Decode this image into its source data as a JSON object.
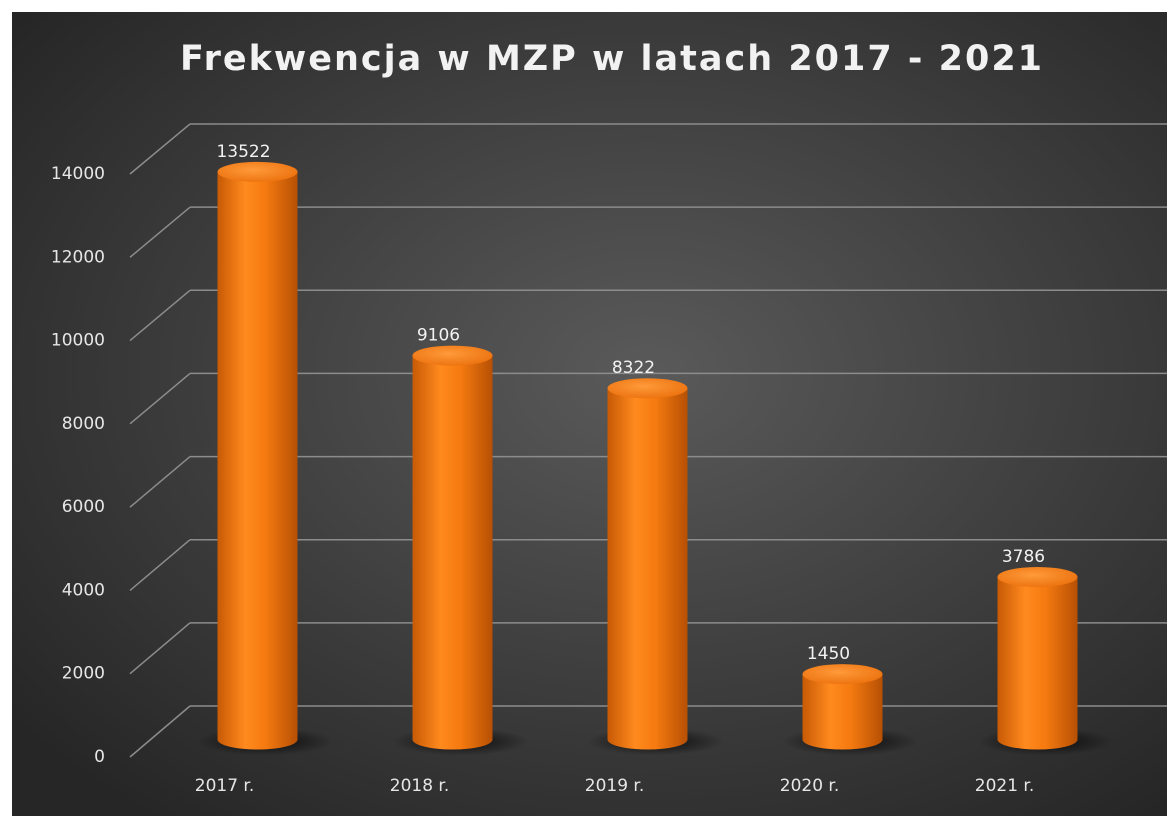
{
  "chart_data": {
    "type": "bar",
    "title": "Frekwencja w MZP w latach 2017 - 2021",
    "categories": [
      "2017 r.",
      "2018 r.",
      "2019 r.",
      "2020 r.",
      "2021 r."
    ],
    "values": [
      13522,
      9106,
      8322,
      1450,
      3786
    ],
    "color": "#f57a10",
    "ylim": [
      0,
      14000
    ],
    "yticks": [
      0,
      2000,
      4000,
      6000,
      8000,
      10000,
      12000,
      14000
    ],
    "grid": true
  }
}
